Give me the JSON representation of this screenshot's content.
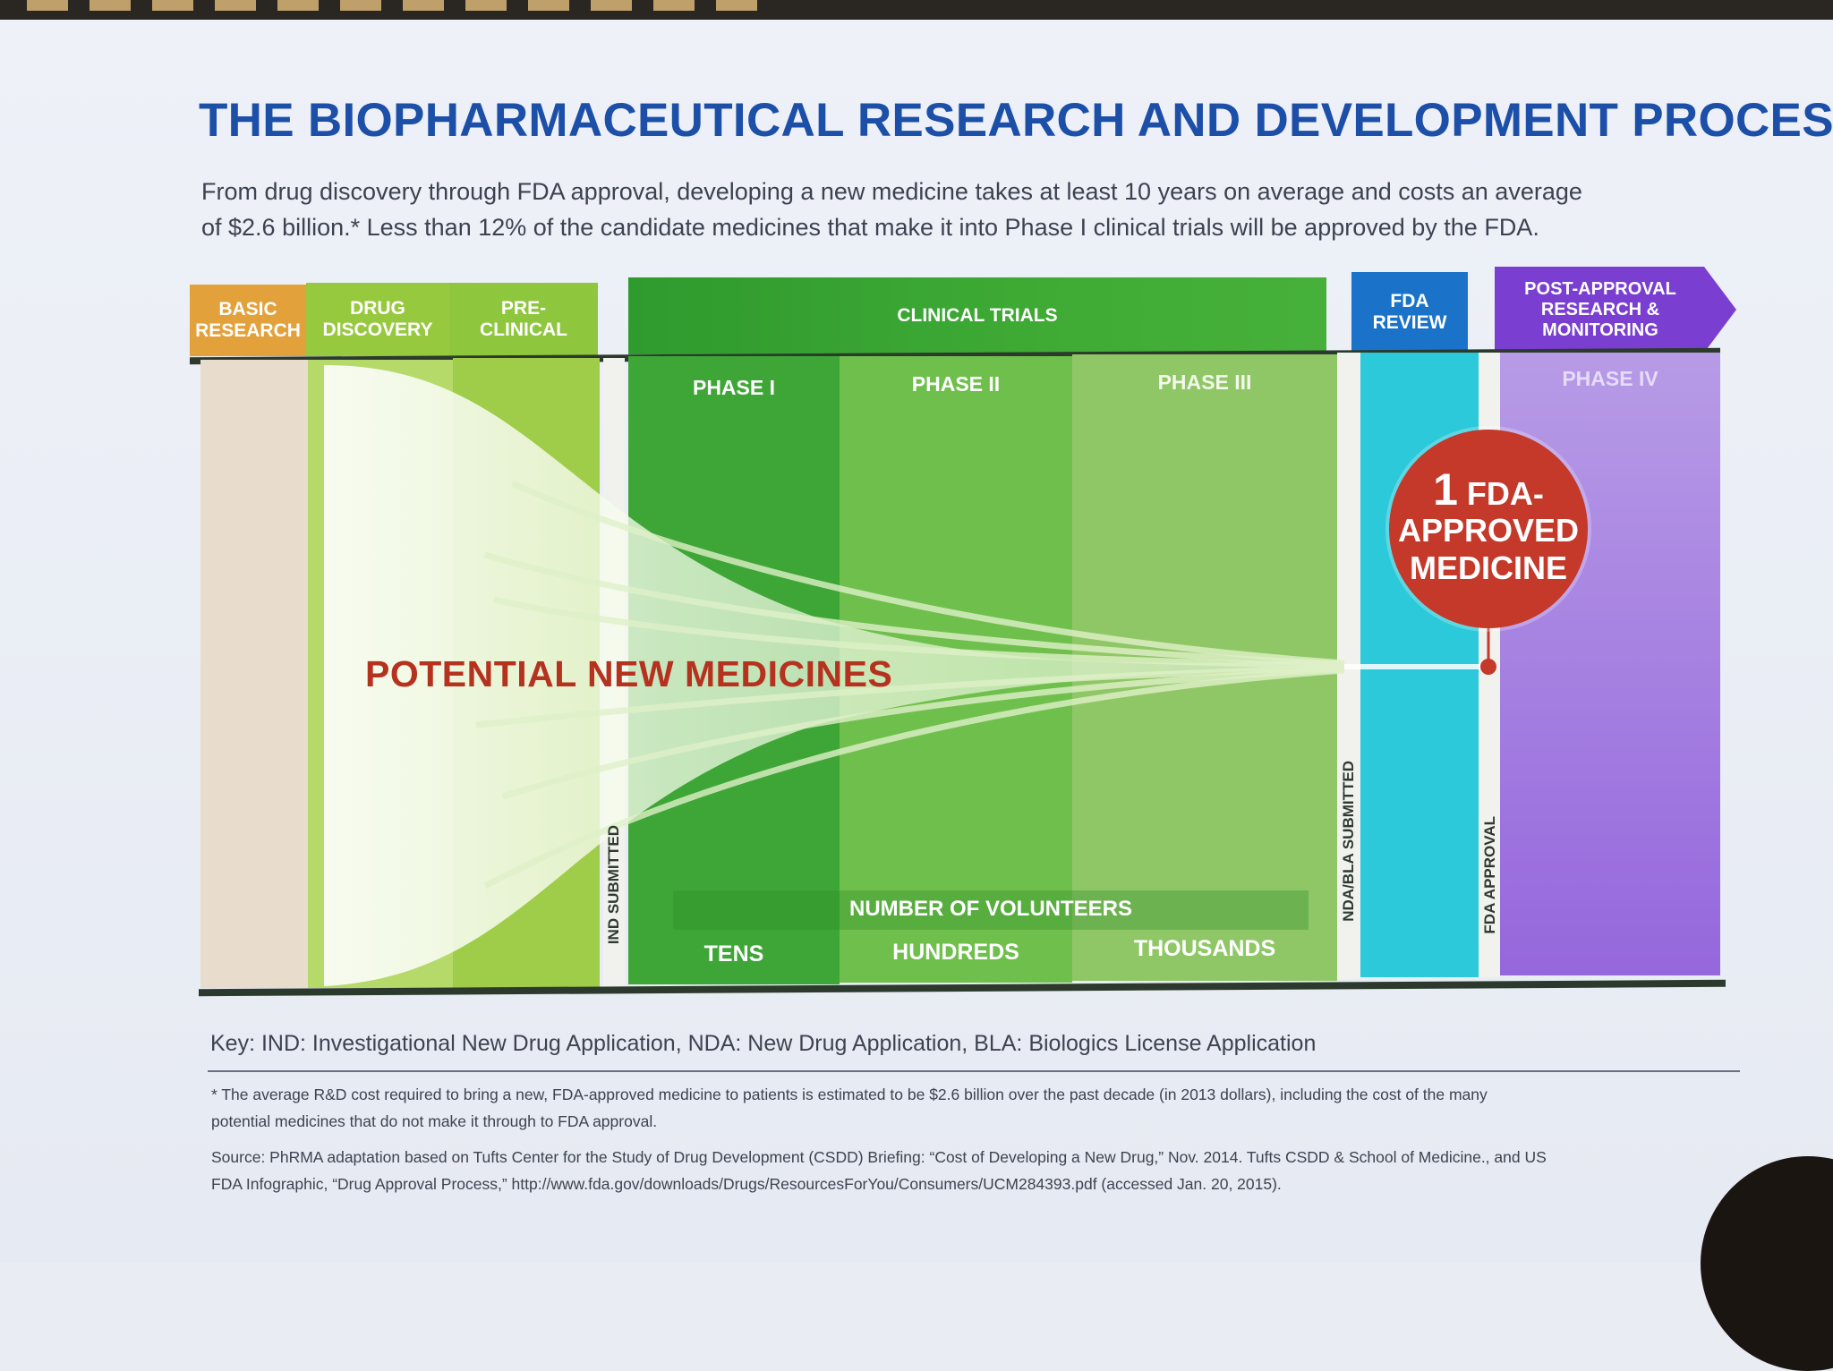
{
  "title": "THE BIOPHARMACEUTICAL RESEARCH AND DEVELOPMENT PROCESS",
  "subtitle_line1": "From drug discovery through FDA approval, developing a new medicine takes at least 10 years on average and costs an average",
  "subtitle_line2": "of $2.6 billion.* Less than 12% of the candidate medicines that make it into Phase I clinical trials will be approved by the FDA.",
  "stages": {
    "basic_research": {
      "line1": "BASIC",
      "line2": "RESEARCH",
      "color": "#e3a13c"
    },
    "drug_discovery": {
      "line1": "DRUG",
      "line2": "DISCOVERY",
      "color": "#9acb44"
    },
    "pre_clinical": {
      "line1": "PRE-",
      "line2": "CLINICAL",
      "color": "#9acb44"
    },
    "clinical_trials": {
      "label": "CLINICAL TRIALS",
      "color": "#3ca636"
    },
    "fda_review": {
      "line1": "FDA",
      "line2": "REVIEW",
      "color": "#1a73c9"
    },
    "post_approval": {
      "line1": "POST-APPROVAL",
      "line2": "RESEARCH &",
      "line3": "MONITORING",
      "color": "#7a3fd0"
    }
  },
  "phases": {
    "p1": "PHASE I",
    "p2": "PHASE II",
    "p3": "PHASE III",
    "p4": "PHASE IV"
  },
  "milestones": {
    "ind": "IND SUBMITTED",
    "nda": "NDA/BLA SUBMITTED",
    "approval": "FDA APPROVAL"
  },
  "volunteers": {
    "label": "NUMBER OF VOLUNTEERS",
    "p1": "TENS",
    "p2": "HUNDREDS",
    "p3": "THOUSANDS"
  },
  "funnel_label": "POTENTIAL NEW MEDICINES",
  "badge": {
    "num": "1",
    "line1": "FDA-",
    "line2": "APPROVED",
    "line3": "MEDICINE",
    "color": "#c4392a"
  },
  "key": "Key: IND: Investigational New Drug Application, NDA: New Drug Application, BLA: Biologics License Application",
  "footnote_line1": "* The average R&D cost required to bring a new, FDA-approved medicine to patients is estimated to be $2.6 billion over the past decade (in 2013 dollars), including the cost of the many",
  "footnote_line2": "potential medicines that do not make it through to FDA approval.",
  "source_line1": "Source: PhRMA adaptation based on Tufts Center for the Study of Drug Development (CSDD) Briefing: “Cost of Developing a New Drug,” Nov. 2014. Tufts CSDD & School of Medicine., and US",
  "source_line2": "FDA Infographic, “Drug Approval Process,” http://www.fda.gov/downloads/Drugs/ResourcesForYou/Consumers/UCM284393.pdf (accessed Jan. 20, 2015)."
}
